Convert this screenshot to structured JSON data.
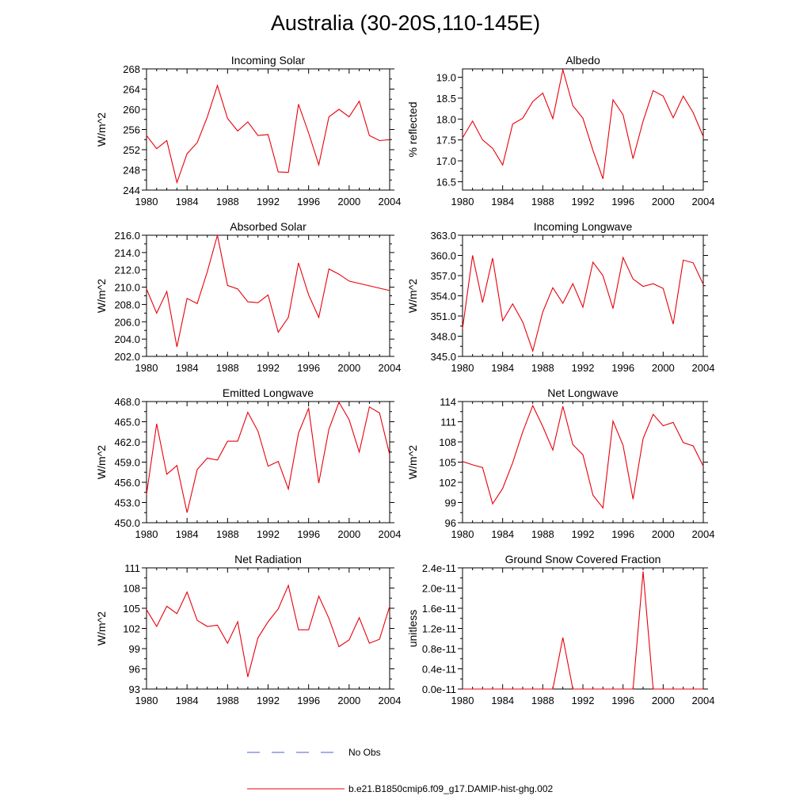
{
  "title": "Australia (30-20S,110-145E)",
  "colors": {
    "model_line": "#e8000b",
    "obs_line": "#4a5bd4",
    "axis": "#000000"
  },
  "legend": [
    {
      "label": "No Obs",
      "style": "dashed",
      "color": "#4a5bd4"
    },
    {
      "label": "b.e21.B1850cmip6.f09_g17.DAMIP-hist-ghg.002",
      "style": "solid",
      "color": "#e8000b"
    }
  ],
  "chart_data": [
    {
      "type": "line",
      "title": "Incoming Solar",
      "xlabel": "",
      "ylabel": "W/m^2",
      "xlim": [
        1980,
        2004
      ],
      "ylim": [
        244,
        268
      ],
      "xticks": [
        1980,
        1984,
        1988,
        1992,
        1996,
        2000,
        2004
      ],
      "xtick_labels": [
        "1980",
        "1984",
        "1988",
        "1992",
        "1996",
        "2000",
        "2004"
      ],
      "yticks": [
        244,
        248,
        252,
        256,
        260,
        264,
        268
      ],
      "ytick_labels": [
        "244",
        "248",
        "252",
        "256",
        "260",
        "264",
        "268"
      ],
      "x": [
        1980,
        1981,
        1982,
        1983,
        1984,
        1985,
        1986,
        1987,
        1988,
        1989,
        1990,
        1991,
        1992,
        1993,
        1994,
        1995,
        1996,
        1997,
        1998,
        1999,
        2000,
        2001,
        2002,
        2003,
        2004
      ],
      "series": [
        {
          "values": [
            254.8,
            252.2,
            253.8,
            245.5,
            251.2,
            253.4,
            258.5,
            264.7,
            258.2,
            255.7,
            257.5,
            254.8,
            255.0,
            247.6,
            247.5,
            261.0,
            255.3,
            249.0,
            258.5,
            260.0,
            258.5,
            261.6,
            254.8,
            253.8,
            254.0
          ]
        }
      ]
    },
    {
      "type": "line",
      "title": "Albedo",
      "xlabel": "",
      "ylabel": "% reflected",
      "xlim": [
        1980,
        2004
      ],
      "ylim": [
        16.3,
        19.2
      ],
      "xticks": [
        1980,
        1984,
        1988,
        1992,
        1996,
        2000,
        2004
      ],
      "xtick_labels": [
        "1980",
        "1984",
        "1988",
        "1992",
        "1996",
        "2000",
        "2004"
      ],
      "yticks": [
        16.5,
        17.0,
        17.5,
        18.0,
        18.5,
        19.0
      ],
      "ytick_labels": [
        "16.5",
        "17.0",
        "17.5",
        "18.0",
        "18.5",
        "19.0"
      ],
      "x": [
        1980,
        1981,
        1982,
        1983,
        1984,
        1985,
        1986,
        1987,
        1988,
        1989,
        1990,
        1991,
        1992,
        1993,
        1994,
        1995,
        1996,
        1997,
        1998,
        1999,
        2000,
        2001,
        2002,
        2003,
        2004
      ],
      "series": [
        {
          "values": [
            17.55,
            17.95,
            17.5,
            17.3,
            16.9,
            17.88,
            18.02,
            18.42,
            18.62,
            18.01,
            19.18,
            18.32,
            18.02,
            17.25,
            16.57,
            18.46,
            18.1,
            17.05,
            17.95,
            18.68,
            18.55,
            18.03,
            18.55,
            18.15,
            17.58
          ]
        }
      ]
    },
    {
      "type": "line",
      "title": "Absorbed Solar",
      "xlabel": "",
      "ylabel": "W/m^2",
      "xlim": [
        1980,
        2004
      ],
      "ylim": [
        202.0,
        216.0
      ],
      "xticks": [
        1980,
        1984,
        1988,
        1992,
        1996,
        2000,
        2004
      ],
      "xtick_labels": [
        "1980",
        "1984",
        "1988",
        "1992",
        "1996",
        "2000",
        "2004"
      ],
      "yticks": [
        202,
        204,
        206,
        208,
        210,
        212,
        214,
        216
      ],
      "ytick_labels": [
        "202.0",
        "204.0",
        "206.0",
        "208.0",
        "210.0",
        "212.0",
        "214.0",
        "216.0"
      ],
      "x": [
        1980,
        1981,
        1982,
        1983,
        1984,
        1985,
        1986,
        1987,
        1988,
        1989,
        1990,
        1991,
        1992,
        1993,
        1994,
        1995,
        1996,
        1997,
        1998,
        1999,
        2000,
        2004
      ],
      "series": [
        {
          "values": [
            209.8,
            207.0,
            209.5,
            203.1,
            208.7,
            208.1,
            211.8,
            216.0,
            210.2,
            209.8,
            208.3,
            208.2,
            209.1,
            204.8,
            206.5,
            212.8,
            209.1,
            206.5,
            212.1,
            211.5,
            210.7,
            209.6
          ]
        }
      ]
    },
    {
      "type": "line",
      "title": "Incoming Longwave",
      "xlabel": "",
      "ylabel": "W/m^2",
      "xlim": [
        1980,
        2004
      ],
      "ylim": [
        345.0,
        363.0
      ],
      "xticks": [
        1980,
        1984,
        1988,
        1992,
        1996,
        2000,
        2004
      ],
      "xtick_labels": [
        "1980",
        "1984",
        "1988",
        "1992",
        "1996",
        "2000",
        "2004"
      ],
      "yticks": [
        345,
        348,
        351,
        354,
        357,
        360,
        363
      ],
      "ytick_labels": [
        "345.0",
        "348.0",
        "351.0",
        "354.0",
        "357.0",
        "360.0",
        "363.0"
      ],
      "x": [
        1980,
        1981,
        1982,
        1983,
        1984,
        1985,
        1986,
        1987,
        1988,
        1989,
        1990,
        1991,
        1992,
        1993,
        1994,
        1995,
        1996,
        1997,
        1998,
        1999,
        2000,
        2001,
        2002,
        2003,
        2004
      ],
      "series": [
        {
          "values": [
            349.1,
            360.0,
            353.0,
            359.6,
            350.3,
            352.8,
            350.1,
            345.8,
            351.6,
            355.2,
            352.9,
            355.8,
            352.3,
            359.0,
            357.0,
            352.1,
            359.7,
            356.5,
            355.4,
            355.8,
            355.1,
            349.8,
            359.3,
            358.9,
            355.7
          ]
        }
      ]
    },
    {
      "type": "line",
      "title": "Emitted Longwave",
      "xlabel": "",
      "ylabel": "W/m^2",
      "xlim": [
        1980,
        2004
      ],
      "ylim": [
        450.0,
        468.0
      ],
      "xticks": [
        1980,
        1984,
        1988,
        1992,
        1996,
        2000,
        2004
      ],
      "xtick_labels": [
        "1980",
        "1984",
        "1988",
        "1992",
        "1996",
        "2000",
        "2004"
      ],
      "yticks": [
        450,
        453,
        456,
        459,
        462,
        465,
        468
      ],
      "ytick_labels": [
        "450.0",
        "453.0",
        "456.0",
        "459.0",
        "462.0",
        "465.0",
        "468.0"
      ],
      "x": [
        1980,
        1981,
        1982,
        1983,
        1984,
        1985,
        1986,
        1987,
        1988,
        1989,
        1990,
        1991,
        1992,
        1993,
        1994,
        1995,
        1996,
        1997,
        1998,
        1999,
        2000,
        2001,
        2002,
        2003,
        2004
      ],
      "series": [
        {
          "values": [
            454.2,
            464.7,
            457.2,
            458.5,
            451.5,
            457.9,
            459.6,
            459.3,
            462.1,
            462.1,
            466.4,
            463.6,
            458.4,
            459.1,
            455.0,
            463.3,
            467.0,
            455.9,
            463.9,
            467.9,
            465.3,
            460.5,
            467.2,
            466.3,
            460.1
          ]
        }
      ]
    },
    {
      "type": "line",
      "title": "Net Longwave",
      "xlabel": "",
      "ylabel": "W/m^2",
      "xlim": [
        1980,
        2004
      ],
      "ylim": [
        96,
        114
      ],
      "xticks": [
        1980,
        1984,
        1988,
        1992,
        1996,
        2000,
        2004
      ],
      "xtick_labels": [
        "1980",
        "1984",
        "1988",
        "1992",
        "1996",
        "2000",
        "2004"
      ],
      "yticks": [
        96,
        99,
        102,
        105,
        108,
        111,
        114
      ],
      "ytick_labels": [
        "96",
        "99",
        "102",
        "105",
        "108",
        "111",
        "114"
      ],
      "x": [
        1980,
        1981,
        1982,
        1983,
        1984,
        1985,
        1986,
        1987,
        1988,
        1989,
        1990,
        1991,
        1992,
        1993,
        1994,
        1995,
        1996,
        1997,
        1998,
        1999,
        2000,
        2001,
        2002,
        2003,
        2004
      ],
      "series": [
        {
          "values": [
            105.1,
            104.6,
            104.2,
            98.8,
            101.1,
            104.9,
            109.5,
            113.4,
            110.3,
            106.8,
            113.3,
            107.6,
            106.1,
            100.1,
            98.2,
            111.1,
            107.5,
            99.5,
            108.5,
            112.1,
            110.4,
            110.9,
            107.9,
            107.4,
            104.4
          ]
        }
      ]
    },
    {
      "type": "line",
      "title": "Net Radiation",
      "xlabel": "",
      "ylabel": "W/m^2",
      "xlim": [
        1980,
        2004
      ],
      "ylim": [
        93,
        111
      ],
      "xticks": [
        1980,
        1984,
        1988,
        1992,
        1996,
        2000,
        2004
      ],
      "xtick_labels": [
        "1980",
        "1984",
        "1988",
        "1992",
        "1996",
        "2000",
        "2004"
      ],
      "yticks": [
        93,
        96,
        99,
        102,
        105,
        108,
        111
      ],
      "ytick_labels": [
        "93",
        "96",
        "99",
        "102",
        "105",
        "108",
        "111"
      ],
      "x": [
        1980,
        1981,
        1982,
        1983,
        1984,
        1985,
        1986,
        1987,
        1988,
        1989,
        1990,
        1991,
        1992,
        1993,
        1994,
        1995,
        1996,
        1997,
        1998,
        1999,
        2000,
        2001,
        2002,
        2003,
        2004
      ],
      "series": [
        {
          "values": [
            104.8,
            102.3,
            105.3,
            104.2,
            107.4,
            103.2,
            102.3,
            102.5,
            99.8,
            103.0,
            94.8,
            100.6,
            103.0,
            104.9,
            108.4,
            101.8,
            101.8,
            106.8,
            103.5,
            99.3,
            100.3,
            103.6,
            99.8,
            100.4,
            105.3
          ]
        }
      ]
    },
    {
      "type": "line",
      "title": "Ground Snow Covered Fraction",
      "xlabel": "",
      "ylabel": "unitless",
      "xlim": [
        1980,
        2004
      ],
      "ylim": [
        0,
        2.4e-11
      ],
      "xticks": [
        1980,
        1984,
        1988,
        1992,
        1996,
        2000,
        2004
      ],
      "xtick_labels": [
        "1980",
        "1984",
        "1988",
        "1992",
        "1996",
        "2000",
        "2004"
      ],
      "yticks": [
        0,
        4e-12,
        8e-12,
        1.2e-11,
        1.6e-11,
        2e-11,
        2.4e-11
      ],
      "ytick_labels": [
        "0.0e-11",
        "0.4e-11",
        "0.8e-11",
        "1.2e-11",
        "1.6e-11",
        "2.0e-11",
        "2.4e-11"
      ],
      "x": [
        1980,
        1981,
        1982,
        1983,
        1984,
        1985,
        1986,
        1987,
        1988,
        1989,
        1990,
        1991,
        1992,
        1993,
        1994,
        1995,
        1996,
        1997,
        1998,
        1999,
        2000,
        2001,
        2002,
        2003,
        2004
      ],
      "series": [
        {
          "values": [
            0,
            0,
            0,
            0,
            0,
            0,
            0,
            0,
            0,
            0,
            1.02e-11,
            0,
            0,
            0,
            0,
            0,
            0,
            0,
            2.33e-11,
            0,
            0,
            0,
            0,
            0,
            0
          ]
        }
      ]
    }
  ]
}
